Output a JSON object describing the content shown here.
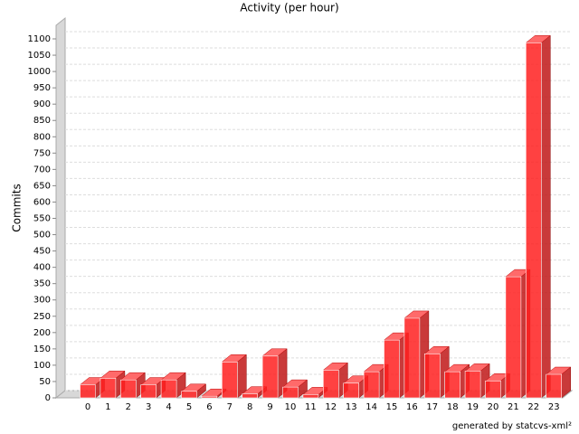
{
  "chart_data": {
    "type": "bar",
    "title": "Activity (per hour)",
    "ylabel": "Commits",
    "footer": "generated by statcvs-xml²",
    "categories": [
      "0",
      "1",
      "2",
      "3",
      "4",
      "5",
      "6",
      "7",
      "8",
      "9",
      "10",
      "11",
      "12",
      "13",
      "14",
      "15",
      "16",
      "17",
      "18",
      "19",
      "20",
      "21",
      "22",
      "23"
    ],
    "values": [
      40,
      60,
      55,
      40,
      55,
      20,
      5,
      110,
      12,
      128,
      33,
      10,
      85,
      45,
      80,
      177,
      244,
      135,
      80,
      82,
      52,
      371,
      1088,
      72
    ],
    "color": "#ff2020",
    "ylim": [
      0,
      1100
    ],
    "yticks": [
      0,
      50,
      100,
      150,
      200,
      250,
      300,
      350,
      400,
      450,
      500,
      550,
      600,
      650,
      700,
      750,
      800,
      850,
      900,
      950,
      1000,
      1050,
      1100
    ],
    "grid": true
  }
}
